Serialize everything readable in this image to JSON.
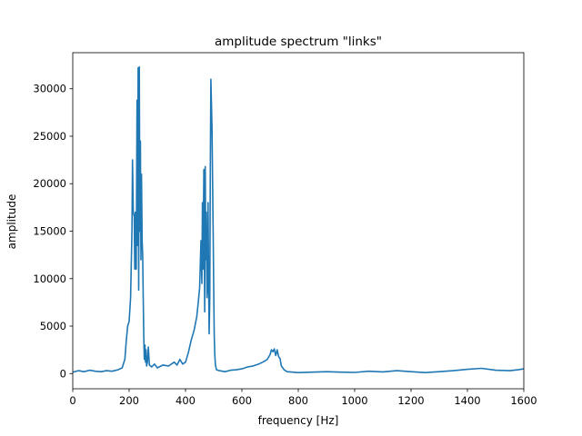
{
  "chart_data": {
    "type": "line",
    "title": "amplitude spectrum \"links\"",
    "xlabel": "frequency [Hz]",
    "ylabel": "amplitude",
    "xlim": [
      0,
      1600
    ],
    "ylim": [
      -1600,
      33800
    ],
    "xticks": [
      0,
      200,
      400,
      600,
      800,
      1000,
      1200,
      1400,
      1600
    ],
    "yticks": [
      0,
      5000,
      10000,
      15000,
      20000,
      25000,
      30000
    ],
    "grid": false,
    "line_color": "#1f77b4",
    "series": [
      {
        "x": [
          0,
          20,
          40,
          60,
          80,
          100,
          120,
          140,
          160,
          175,
          185,
          190,
          195,
          200,
          205,
          210,
          212,
          215,
          218,
          220,
          222,
          225,
          228,
          230,
          232,
          234,
          236,
          238,
          240,
          242,
          244,
          246,
          248,
          250,
          252,
          254,
          256,
          258,
          260,
          262,
          265,
          268,
          272,
          280,
          290,
          300,
          320,
          340,
          360,
          370,
          380,
          390,
          400,
          410,
          420,
          430,
          440,
          445,
          450,
          455,
          458,
          460,
          462,
          465,
          468,
          470,
          472,
          474,
          476,
          478,
          480,
          482,
          484,
          486,
          488,
          490,
          492,
          494,
          496,
          498,
          500,
          502,
          504,
          506,
          510,
          520,
          540,
          560,
          580,
          600,
          620,
          640,
          660,
          680,
          690,
          700,
          705,
          710,
          715,
          720,
          725,
          730,
          735,
          740,
          750,
          760,
          780,
          800,
          850,
          900,
          950,
          1000,
          1050,
          1100,
          1150,
          1200,
          1250,
          1300,
          1350,
          1400,
          1450,
          1500,
          1550,
          1580,
          1600
        ],
        "y": [
          150,
          300,
          200,
          350,
          250,
          200,
          300,
          250,
          400,
          600,
          1500,
          3500,
          5000,
          5500,
          8000,
          15000,
          22500,
          17000,
          16500,
          11000,
          17000,
          11000,
          28800,
          13500,
          32200,
          8800,
          32300,
          15000,
          24500,
          12000,
          21000,
          14000,
          12500,
          8000,
          4000,
          1500,
          3000,
          1200,
          2500,
          800,
          1200,
          2800,
          900,
          700,
          1000,
          600,
          900,
          800,
          1200,
          900,
          1500,
          1000,
          1200,
          2200,
          3500,
          4500,
          6000,
          7500,
          9000,
          14000,
          9500,
          18000,
          11000,
          21500,
          6500,
          21800,
          12000,
          17000,
          8000,
          9000,
          18000,
          10000,
          4200,
          8000,
          22000,
          31000,
          28500,
          26000,
          20000,
          15000,
          9000,
          4000,
          2000,
          900,
          400,
          300,
          200,
          350,
          400,
          500,
          700,
          800,
          1000,
          1300,
          1500,
          2000,
          2500,
          2300,
          2600,
          1900,
          2500,
          1800,
          1600,
          800,
          400,
          200,
          150,
          100,
          150,
          200,
          150,
          120,
          250,
          180,
          300,
          200,
          100,
          200,
          300,
          450,
          550,
          350,
          300,
          400,
          500
        ]
      }
    ]
  }
}
